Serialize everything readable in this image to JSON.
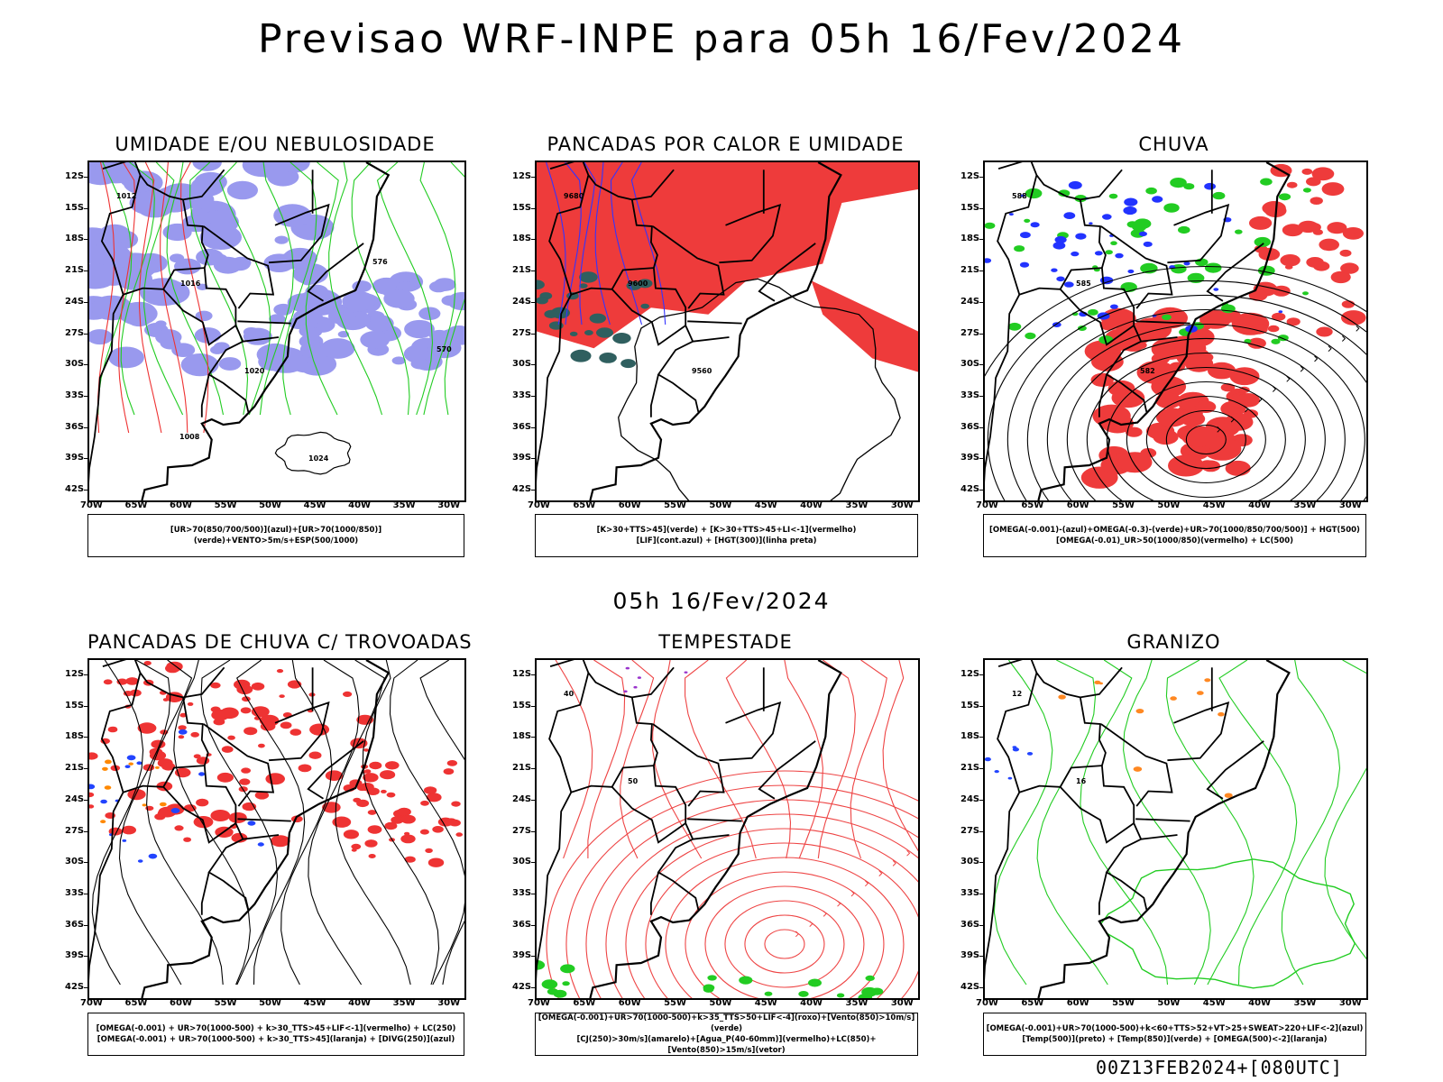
{
  "title": "Previsao WRF-INPE  para 05h 16/Fev/2024",
  "mid_title": "05h 16/Fev/2024",
  "footer": "00Z13FEB2024+[080UTC]",
  "lat_ticks": [
    "12S",
    "15S",
    "18S",
    "21S",
    "24S",
    "27S",
    "30S",
    "33S",
    "36S",
    "39S",
    "42S"
  ],
  "lon_ticks": [
    "70W",
    "65W",
    "60W",
    "55W",
    "50W",
    "45W",
    "40W",
    "35W",
    "30W"
  ],
  "panels": [
    {
      "title": "UMIDADE E/OU NEBULOSIDADE",
      "legend": [
        "[UR>70(850/700/500)](azul)+[UR>70(1000/850)](verde)+VENTO>5m/s+ESP(500/1000)"
      ],
      "contour_labels": [
        "1012",
        "1016",
        "1020",
        "1024",
        "576",
        "570",
        "1008"
      ],
      "colors": {
        "blue": "#9999ee",
        "green": "#22cc22",
        "red": "#ee3333"
      }
    },
    {
      "title": "PANCADAS POR CALOR E UMIDADE",
      "legend": [
        "[K>30+TTS>45](verde) + [K>30+TTS>45+LI<-1](vermelho)",
        "[LIF](cont.azul) + [HGT(300)](linha preta)"
      ],
      "contour_labels": [
        "9680",
        "9600",
        "9560"
      ],
      "colors": {
        "red": "#ee3b3b",
        "teal": "#2f5f5f",
        "blue": "#3333ff"
      }
    },
    {
      "title": "CHUVA",
      "legend": [
        "[OMEGA(-0.001)-(azul)+OMEGA(-0.3)-(verde)+UR>70(1000/850/700/500)] + HGT(500)",
        "[OMEGA(-0.01)_UR>50(1000/850)(vermelho) + LC(500)"
      ],
      "contour_labels": [
        "588",
        "585",
        "582"
      ],
      "colors": {
        "red": "#ee3b3b",
        "green": "#22cc22",
        "blue": "#2233ff"
      }
    },
    {
      "title": "PANCADAS DE CHUVA C/ TROVOADAS",
      "legend": [
        "[OMEGA(-0.001) + UR>70(1000-500) + k>30_TTS>45+LIF<-1](vermelho) + LC(250)",
        "[OMEGA(-0.001) + UR>70(1000-500) + k>30_TTS>45](laranja) + [DIVG(250)](azul)"
      ],
      "contour_labels": [],
      "colors": {
        "red": "#ee3333",
        "orange": "#ff8800",
        "blue": "#2244ff"
      }
    },
    {
      "title": "TEMPESTADE",
      "legend": [
        "[OMEGA(-0.001)+UR>70(1000-500)+k>35_TTS>50+LIF<-4](roxo)+[Vento(850)>10m/s](verde)",
        "[CJ(250)>30m/s](amarelo)+[Agua_P(40-60mm)](vermelho)+LC(850)+[Vento(850)>15m/s](vetor)"
      ],
      "contour_labels": [
        "40",
        "50"
      ],
      "colors": {
        "red": "#ee4444",
        "green": "#22cc22",
        "purple": "#9933cc"
      }
    },
    {
      "title": "GRANIZO",
      "legend": [
        "[OMEGA(-0.001)+UR>70(1000-500)+k<60+TTS>52+VT>25+SWEAT>220+LIF<-2](azul)",
        "[Temp(500)](preto) + [Temp(850)](verde) + [OMEGA(500)<-2](laranja)"
      ],
      "contour_labels": [
        "12",
        "16"
      ],
      "colors": {
        "green": "#22cc22",
        "orange": "#ff8822",
        "blue": "#2244ff"
      }
    }
  ]
}
